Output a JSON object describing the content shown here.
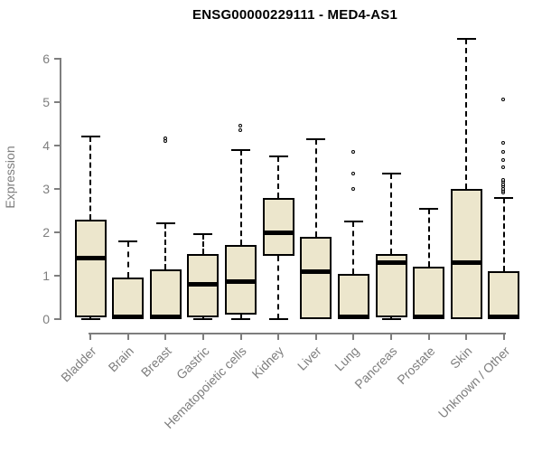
{
  "chart_data": {
    "type": "boxplot",
    "title": "ENSG00000229111 - MED4-AS1",
    "ylabel": "Expression",
    "xlabel": "",
    "ylim": [
      0,
      6.5
    ],
    "yticks": [
      0,
      1,
      2,
      3,
      4,
      5,
      6
    ],
    "grid": false,
    "legend": false,
    "categories": [
      "Bladder",
      "Brain",
      "Breast",
      "Gastric",
      "Hematopoietic cells",
      "Kidney",
      "Liver",
      "Lung",
      "Pancreas",
      "Prostate",
      "Skin",
      "Unknown / Other"
    ],
    "series": [
      {
        "category": "Bladder",
        "whisker_low": 0.0,
        "q1": 0.05,
        "median": 1.4,
        "q3": 2.3,
        "whisker_high": 4.2,
        "outliers": []
      },
      {
        "category": "Brain",
        "whisker_low": 0.0,
        "q1": 0.0,
        "median": 0.05,
        "q3": 0.95,
        "whisker_high": 1.8,
        "outliers": []
      },
      {
        "category": "Breast",
        "whisker_low": 0.0,
        "q1": 0.0,
        "median": 0.05,
        "q3": 1.15,
        "whisker_high": 2.2,
        "outliers": [
          4.1,
          4.15
        ]
      },
      {
        "category": "Gastric",
        "whisker_low": 0.0,
        "q1": 0.05,
        "median": 0.8,
        "q3": 1.5,
        "whisker_high": 1.95,
        "outliers": []
      },
      {
        "category": "Hematopoietic cells",
        "whisker_low": 0.0,
        "q1": 0.1,
        "median": 0.87,
        "q3": 1.7,
        "whisker_high": 3.9,
        "outliers": [
          4.35,
          4.45
        ]
      },
      {
        "category": "Kidney",
        "whisker_low": 0.0,
        "q1": 1.45,
        "median": 2.0,
        "q3": 2.8,
        "whisker_high": 3.75,
        "outliers": []
      },
      {
        "category": "Liver",
        "whisker_low": 0.0,
        "q1": 0.0,
        "median": 1.1,
        "q3": 1.9,
        "whisker_high": 4.15,
        "outliers": []
      },
      {
        "category": "Lung",
        "whisker_low": 0.0,
        "q1": 0.0,
        "median": 0.05,
        "q3": 1.05,
        "whisker_high": 2.25,
        "outliers": [
          3.0,
          3.35,
          3.85
        ]
      },
      {
        "category": "Pancreas",
        "whisker_low": 0.0,
        "q1": 0.05,
        "median": 1.3,
        "q3": 1.5,
        "whisker_high": 3.35,
        "outliers": []
      },
      {
        "category": "Prostate",
        "whisker_low": 0.0,
        "q1": 0.0,
        "median": 0.05,
        "q3": 1.2,
        "whisker_high": 2.55,
        "outliers": []
      },
      {
        "category": "Skin",
        "whisker_low": 0.0,
        "q1": 0.0,
        "median": 1.3,
        "q3": 3.0,
        "whisker_high": 6.45,
        "outliers": []
      },
      {
        "category": "Unknown / Other",
        "whisker_low": 0.0,
        "q1": 0.0,
        "median": 0.05,
        "q3": 1.1,
        "whisker_high": 2.8,
        "outliers": [
          2.9,
          2.95,
          3.0,
          3.05,
          3.1,
          3.15,
          3.2,
          3.5,
          3.65,
          3.85,
          4.05,
          5.05
        ]
      }
    ],
    "colors": {
      "box_fill": "#ECE6CC",
      "box_border": "#000000",
      "median": "#000000",
      "whisker": "#000000",
      "axis": "#7E7E7E",
      "tick_label": "#7E7E7E",
      "title": "#000000",
      "background": "#FFFFFF"
    }
  }
}
